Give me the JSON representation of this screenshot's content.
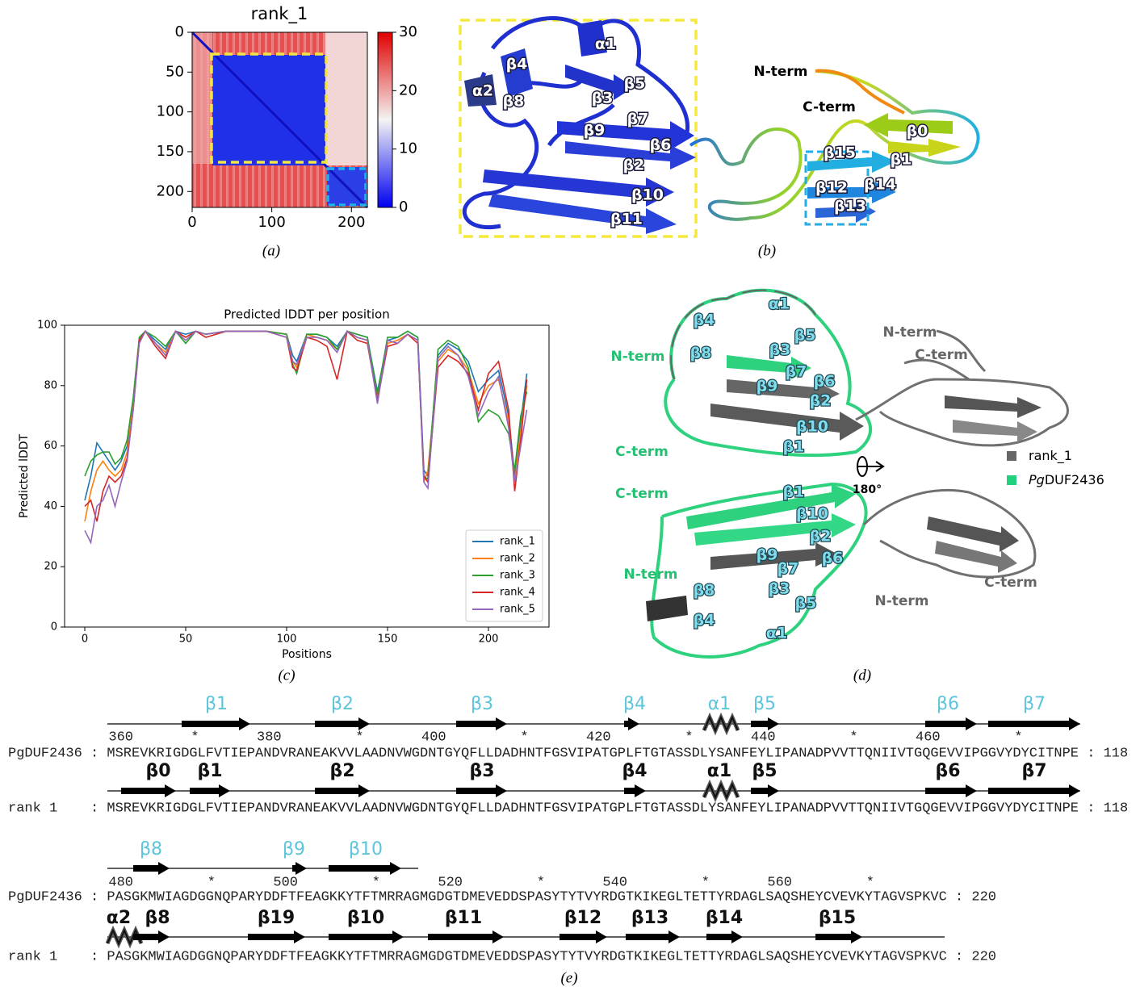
{
  "chart_data": [
    {
      "type": "heatmap",
      "title": "rank_1",
      "xlim": [
        0,
        220
      ],
      "ylim": [
        0,
        220
      ],
      "y_inverted": true,
      "xticks": [
        0,
        100,
        200
      ],
      "yticks": [
        0,
        50,
        100,
        150,
        200
      ],
      "colorbar": {
        "lim": [
          0,
          30
        ],
        "ticks": [
          0,
          10,
          20,
          30
        ]
      }
    },
    {
      "type": "line",
      "title": "Predicted lDDT per position",
      "xlabel": "Positions",
      "ylabel": "Predicted lDDT",
      "xlim": [
        -10,
        230
      ],
      "ylim": [
        0,
        100
      ],
      "xticks": [
        0,
        50,
        100,
        150,
        200
      ],
      "yticks": [
        0,
        20,
        40,
        60,
        80,
        100
      ],
      "legend": "lower right",
      "x": [
        0,
        3,
        6,
        9,
        12,
        15,
        18,
        21,
        24,
        27,
        30,
        35,
        40,
        45,
        50,
        55,
        60,
        70,
        80,
        90,
        100,
        103,
        105,
        110,
        115,
        120,
        125,
        130,
        135,
        140,
        145,
        150,
        155,
        160,
        165,
        168,
        170,
        175,
        180,
        185,
        190,
        195,
        200,
        205,
        210,
        213,
        216,
        219
      ],
      "series": [
        {
          "name": "rank_1",
          "color": "#1f77b4",
          "values": [
            42,
            50,
            61,
            58,
            55,
            52,
            55,
            60,
            75,
            95,
            98,
            95,
            92,
            98,
            97,
            98,
            97,
            98,
            98,
            98,
            97,
            90,
            88,
            97,
            97,
            96,
            93,
            98,
            97,
            96,
            78,
            95,
            96,
            98,
            96,
            52,
            50,
            90,
            94,
            92,
            88,
            78,
            82,
            85,
            70,
            50,
            68,
            84
          ]
        },
        {
          "name": "rank_2",
          "color": "#ff7f0e",
          "values": [
            35,
            45,
            52,
            55,
            52,
            50,
            52,
            58,
            74,
            95,
            98,
            94,
            91,
            98,
            96,
            98,
            97,
            98,
            98,
            98,
            97,
            88,
            86,
            97,
            96,
            95,
            92,
            98,
            96,
            95,
            76,
            94,
            95,
            97,
            95,
            48,
            52,
            88,
            92,
            90,
            85,
            74,
            80,
            82,
            68,
            48,
            65,
            80
          ]
        },
        {
          "name": "rank_3",
          "color": "#2ca02c",
          "values": [
            50,
            55,
            57,
            58,
            58,
            54,
            56,
            62,
            76,
            96,
            98,
            96,
            93,
            98,
            94,
            98,
            97,
            98,
            98,
            98,
            97,
            87,
            84,
            97,
            97,
            96,
            92,
            98,
            97,
            96,
            77,
            96,
            96,
            98,
            96,
            50,
            49,
            92,
            95,
            93,
            86,
            68,
            72,
            70,
            64,
            52,
            70,
            78
          ]
        },
        {
          "name": "rank_4",
          "color": "#d62728",
          "values": [
            40,
            42,
            35,
            45,
            50,
            48,
            50,
            56,
            72,
            95,
            98,
            93,
            89,
            98,
            96,
            98,
            96,
            98,
            98,
            98,
            96,
            86,
            85,
            96,
            95,
            93,
            82,
            98,
            95,
            94,
            75,
            93,
            94,
            97,
            94,
            50,
            48,
            86,
            90,
            88,
            84,
            72,
            84,
            88,
            72,
            45,
            62,
            82
          ]
        },
        {
          "name": "rank_5",
          "color": "#9467bd",
          "values": [
            32,
            28,
            40,
            42,
            47,
            40,
            48,
            55,
            72,
            94,
            98,
            94,
            90,
            98,
            95,
            98,
            97,
            98,
            98,
            98,
            96,
            88,
            87,
            96,
            96,
            95,
            91,
            98,
            96,
            95,
            74,
            95,
            94,
            97,
            95,
            48,
            46,
            89,
            93,
            90,
            83,
            70,
            78,
            83,
            66,
            48,
            60,
            72
          ]
        }
      ]
    }
  ],
  "panel_b": {
    "labels": [
      "α1",
      "β4",
      "α2",
      "β8",
      "β5",
      "β3",
      "β7",
      "β9",
      "β6",
      "β2",
      "β10",
      "β11",
      "β0",
      "β15",
      "β1",
      "β12",
      "β14",
      "β13"
    ],
    "n_term": "N-term",
    "c_term": "C-term"
  },
  "panel_d": {
    "labels_top": [
      "α1",
      "β4",
      "β5",
      "β8",
      "β3",
      "β7",
      "β6",
      "β9",
      "β2",
      "β10",
      "β1"
    ],
    "labels_bottom": [
      "β1",
      "β10",
      "β2",
      "β9",
      "β6",
      "β7",
      "β8",
      "β3",
      "β5",
      "β4",
      "α1"
    ],
    "n_term": "N-term",
    "c_term": "C-term",
    "rotation": "180°",
    "legend": [
      {
        "name": "rank_1",
        "color": "#666666"
      },
      {
        "name_italic": "Pg",
        "name": "DUF2436",
        "color": "#22d07f"
      }
    ]
  },
  "panel_e": {
    "separator": ":",
    "rows": [
      {
        "ruler": "360       *       380         *       400         *       420         *       440         *       460         *",
        "pg": {
          "name": "PgDUF2436",
          "seq": "MSREVKRIGDGLFVTIEPANDVRANEAKVVLAADNVWGDNTGYQFLLDADHNTFGSVIPATGPLFTGTASSDLYSANFEYLIPANADPVVTTQNIIVTGQGEVVIPGGVYDYCITNPE",
          "end": "118",
          "ss": [
            "β1",
            "β2",
            "β3",
            "β4",
            "α1",
            "β5",
            "β6",
            "β7"
          ]
        },
        "rank": {
          "name": "rank 1",
          "seq": "MSREVKRIGDGLFVTIEPANDVRANEAKVVLAADNVWGDNTGYQFLLDADHNTFGSVIPATGPLFTGTASSDLYSANFEYLIPANADPVVTTQNIIVTGQGEVVIPGGVYDYCITNPE",
          "end": "118",
          "ss": [
            "β0",
            "β1",
            "β2",
            "β3",
            "β4",
            "α1",
            "β5",
            "β6",
            "β7"
          ]
        }
      },
      {
        "ruler": "480         *       500         *       520         *       540         *       560         *",
        "pg": {
          "name": "PgDUF2436",
          "seq": "PASGKMWIAGDGGNQPARYDDFTFEAGKKYTFTMRRAGMGDGTDMEVEDDSPASYTYTVYRDGTKIKEGLTETTYRDAGLSAQSHEYCVEVKYTAGVSPKVC",
          "end": "220",
          "ss": [
            "β8",
            "β9",
            "β10"
          ]
        },
        "rank": {
          "name": "rank 1",
          "seq": "PASGKMWIAGDGGNQPARYDDFTFEAGKKYTFTMRRAGMGDGTDMEVEDDSPASYTYTVYRDGTKIKEGLTETTYRDAGLSAQSHEYCVEVKYTAGVSPKVC",
          "end": "220",
          "ss": [
            "α2",
            "β8",
            "β19",
            "β10",
            "β11",
            "β12",
            "β13",
            "β14",
            "β15"
          ]
        }
      }
    ]
  },
  "captions": [
    "(a)",
    "(b)",
    "(c)",
    "(d)",
    "(e)"
  ]
}
